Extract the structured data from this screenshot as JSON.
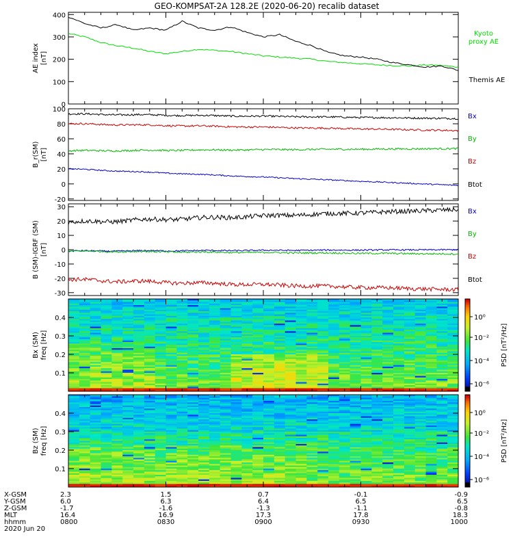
{
  "title": "GEO-KOMPSAT-2A 128.2E (2020-06-20) recalib dataset",
  "chart_data": [
    {
      "type": "line",
      "panel": "AE",
      "ylabel": [
        "AE index",
        "[nT]"
      ],
      "ylim": [
        0,
        410
      ],
      "yticks": [
        0,
        100,
        200,
        300,
        400
      ],
      "x": [
        "08:00",
        "08:05",
        "08:10",
        "08:15",
        "08:20",
        "08:25",
        "08:30",
        "08:35",
        "08:40",
        "08:45",
        "08:50",
        "08:55",
        "09:00",
        "09:05",
        "09:10",
        "09:15",
        "09:20",
        "09:25",
        "09:30",
        "09:35",
        "09:40",
        "09:45",
        "09:50",
        "09:55",
        "10:00"
      ],
      "series": [
        {
          "name": "Kyoto proxy AE",
          "label_lines": [
            "Kyoto",
            "proxy AE"
          ],
          "color": "#00dd00",
          "values": [
            315,
            300,
            275,
            260,
            250,
            235,
            225,
            235,
            245,
            240,
            235,
            225,
            215,
            210,
            205,
            200,
            190,
            185,
            180,
            175,
            172,
            170,
            175,
            172,
            165
          ]
        },
        {
          "name": "Themis AE",
          "label_lines": [
            "Themis AE"
          ],
          "color": "#000000",
          "values": [
            390,
            360,
            340,
            355,
            330,
            340,
            330,
            370,
            340,
            330,
            345,
            320,
            300,
            310,
            280,
            260,
            230,
            215,
            210,
            200,
            185,
            175,
            165,
            170,
            150
          ]
        }
      ]
    },
    {
      "type": "line",
      "panel": "B",
      "ylabel": [
        "B_r(SM)",
        "[nT]"
      ],
      "ylim": [
        -22,
        100
      ],
      "yticks": [
        -20,
        0,
        20,
        40,
        60,
        80,
        100
      ],
      "legend": [
        {
          "name": "Bx",
          "color": "#0000cc"
        },
        {
          "name": "By",
          "color": "#00bb00"
        },
        {
          "name": "Bz",
          "color": "#cc0000"
        },
        {
          "name": "Btot",
          "color": "#000000"
        }
      ],
      "series": [
        {
          "name": "Btot",
          "color": "#000000",
          "start": 93,
          "end": 87
        },
        {
          "name": "Bz",
          "color": "#cc0000",
          "start": 80,
          "end": 71
        },
        {
          "name": "By",
          "color": "#00bb00",
          "start": 44,
          "end": 47
        },
        {
          "name": "Bx",
          "color": "#0000cc",
          "start": 20,
          "end": -2
        }
      ]
    },
    {
      "type": "line",
      "panel": "B-IGRF",
      "ylabel": [
        "B (SM)-IGRF (SM)",
        "[nT]"
      ],
      "ylim": [
        -32,
        32
      ],
      "yticks": [
        -30,
        -20,
        -10,
        0,
        10,
        20,
        30
      ],
      "legend": [
        {
          "name": "Bx",
          "color": "#0000cc"
        },
        {
          "name": "By",
          "color": "#00bb00"
        },
        {
          "name": "Bz",
          "color": "#cc0000"
        },
        {
          "name": "Btot",
          "color": "#000000"
        }
      ],
      "series": [
        {
          "name": "Btot",
          "color": "#000000",
          "start": 19,
          "end": 28
        },
        {
          "name": "Bx",
          "color": "#0000cc",
          "start": -1,
          "end": 0
        },
        {
          "name": "By",
          "color": "#00bb00",
          "start": -1,
          "end": -3
        },
        {
          "name": "Bz",
          "color": "#cc0000",
          "start": -21,
          "end": -28
        }
      ]
    },
    {
      "type": "heatmap",
      "panel": "Bx spectrogram",
      "ylabel": [
        "Bx (SM)",
        "freq [Hz]"
      ],
      "ylim": [
        0,
        0.5
      ],
      "yticks": [
        0.1,
        0.2,
        0.3,
        0.4
      ],
      "colorbar": {
        "label": "PSD [nT²/Hz]",
        "ticks": [
          "10⁰",
          "10⁻²",
          "10⁻⁴",
          "10⁻⁶"
        ]
      }
    },
    {
      "type": "heatmap",
      "panel": "Bz spectrogram",
      "ylabel": [
        "Bz (SM)",
        "freq [Hz]"
      ],
      "ylim": [
        0,
        0.5
      ],
      "yticks": [
        0.1,
        0.2,
        0.3,
        0.4
      ],
      "colorbar": {
        "label": "PSD [nT²/Hz]",
        "ticks": [
          "10⁰",
          "10⁻²",
          "10⁻⁴",
          "10⁻⁶"
        ]
      }
    }
  ],
  "ephemeris": {
    "labels": [
      "X-GSM",
      "Y-GSM",
      "Z-GSM",
      "MLT",
      "hhmm",
      "2020 Jun 20"
    ],
    "columns": [
      [
        "2.3",
        "6.0",
        "-1.7",
        "16.4",
        "0800"
      ],
      [
        "1.5",
        "6.3",
        "-1.6",
        "16.9",
        "0830"
      ],
      [
        "0.7",
        "6.4",
        "-1.3",
        "17.3",
        "0900"
      ],
      [
        "-0.1",
        "6.5",
        "-1.1",
        "17.8",
        "0930"
      ],
      [
        "-0.9",
        "6.5",
        "-0.8",
        "18.3",
        "1000"
      ]
    ]
  }
}
